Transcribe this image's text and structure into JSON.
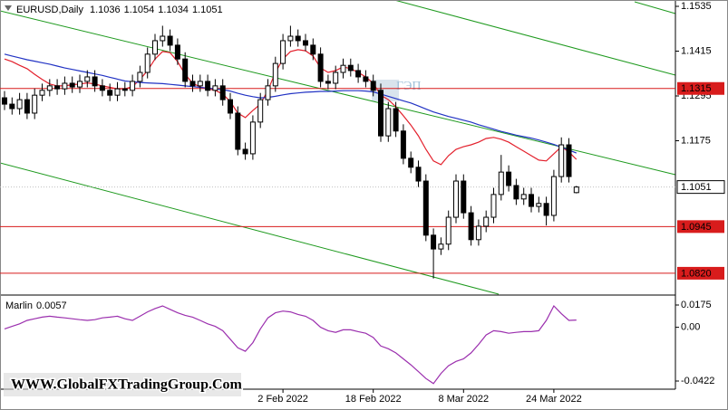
{
  "chart_data": {
    "type": "candlestick",
    "symbol": "EURUSD,Daily",
    "categories": [
      null,
      null,
      null,
      null,
      null,
      null,
      null,
      null,
      null,
      null,
      null,
      null,
      null,
      null,
      null,
      null,
      null,
      null,
      null,
      null,
      null,
      null,
      null,
      null,
      null,
      null,
      null,
      null,
      null,
      null,
      null,
      null,
      null,
      null,
      null,
      null,
      null,
      "2 Feb 2022",
      null,
      null,
      null,
      null,
      null,
      null,
      null,
      null,
      null,
      null,
      null,
      "18 Feb 2022",
      null,
      null,
      null,
      null,
      null,
      null,
      null,
      null,
      null,
      null,
      null,
      "8 Mar 2022",
      null,
      null,
      null,
      null,
      null,
      null,
      null,
      null,
      null,
      null,
      null,
      "24 Mar 2022",
      null,
      null,
      null
    ],
    "open": [
      1.129,
      1.1273,
      1.1261,
      1.1285,
      1.1249,
      1.1297,
      1.131,
      1.1322,
      1.1314,
      1.1329,
      1.1319,
      1.1334,
      1.1346,
      1.1322,
      1.131,
      1.1297,
      1.1314,
      1.131,
      1.1334,
      1.1358,
      1.1407,
      1.1443,
      1.1455,
      1.1431,
      1.1394,
      1.1334,
      1.1322,
      1.1334,
      1.131,
      1.1322,
      1.1285,
      1.1249,
      1.1152,
      1.114,
      1.1225,
      1.1285,
      1.1322,
      1.1382,
      1.1443,
      1.1455,
      1.1443,
      1.1431,
      1.1407,
      1.1334,
      1.1329,
      1.1358,
      1.1377,
      1.1363,
      1.1346,
      1.1334,
      1.131,
      1.1188,
      1.1261,
      1.1201,
      1.1128,
      1.1104,
      1.1067,
      1.0922,
      1.0885,
      1.0898,
      1.097,
      1.1067,
      1.0982,
      1.091,
      1.0946,
      1.097,
      1.1031,
      1.1091,
      1.1055,
      1.1019,
      1.1031,
      1.0999,
      1.1007,
      1.0975,
      1.1079,
      1.1164,
      1.1036
    ],
    "high": [
      1.1308,
      1.1291,
      1.1303,
      1.1303,
      1.1315,
      1.1328,
      1.134,
      1.134,
      1.1347,
      1.1347,
      1.1352,
      1.1364,
      1.1364,
      1.134,
      1.1328,
      1.1332,
      1.1332,
      1.1352,
      1.1376,
      1.1425,
      1.1461,
      1.1483,
      1.1473,
      1.1449,
      1.1412,
      1.1352,
      1.1352,
      1.1352,
      1.134,
      1.134,
      1.1303,
      1.1267,
      1.117,
      1.1243,
      1.1303,
      1.134,
      1.14,
      1.1461,
      1.1483,
      1.1473,
      1.1461,
      1.1449,
      1.1425,
      1.1352,
      1.1376,
      1.1395,
      1.1395,
      1.1381,
      1.1364,
      1.1352,
      1.1328,
      1.1279,
      1.1279,
      1.1219,
      1.1146,
      1.1122,
      1.1085,
      1.094,
      1.0916,
      1.0988,
      1.1085,
      1.1085,
      1.1,
      1.0964,
      1.0988,
      1.1049,
      1.1137,
      1.1109,
      1.1073,
      1.1049,
      1.1049,
      1.1025,
      1.1025,
      1.1097,
      1.1184,
      1.1182,
      1.1054
    ],
    "low": [
      1.1257,
      1.1245,
      1.1245,
      1.1233,
      1.1233,
      1.1281,
      1.1294,
      1.1298,
      1.1298,
      1.1303,
      1.1303,
      1.1318,
      1.1306,
      1.1294,
      1.1281,
      1.1281,
      1.1294,
      1.1294,
      1.1318,
      1.1342,
      1.1391,
      1.1427,
      1.1415,
      1.1378,
      1.1318,
      1.1306,
      1.1306,
      1.1294,
      1.1294,
      1.1269,
      1.1233,
      1.1136,
      1.1124,
      1.1124,
      1.1209,
      1.1269,
      1.1306,
      1.1366,
      1.1427,
      1.1427,
      1.1415,
      1.1391,
      1.1318,
      1.1313,
      1.1313,
      1.1342,
      1.1347,
      1.133,
      1.1318,
      1.1294,
      1.1172,
      1.1172,
      1.1185,
      1.1112,
      1.1088,
      1.1051,
      1.0906,
      1.0806,
      1.0869,
      1.0882,
      1.0954,
      1.0966,
      1.0894,
      1.0894,
      1.093,
      1.0954,
      1.1015,
      1.1039,
      1.1003,
      1.1003,
      1.0983,
      1.0983,
      1.0948,
      1.0959,
      1.1063,
      1.1063,
      1.1034
    ],
    "close": [
      1.1273,
      1.1261,
      1.1285,
      1.1249,
      1.1297,
      1.131,
      1.1322,
      1.1314,
      1.1329,
      1.1319,
      1.1334,
      1.1346,
      1.1322,
      1.131,
      1.1297,
      1.1314,
      1.131,
      1.1334,
      1.1358,
      1.1407,
      1.1443,
      1.1455,
      1.1431,
      1.1394,
      1.1334,
      1.1322,
      1.1334,
      1.131,
      1.1322,
      1.1285,
      1.1249,
      1.1152,
      1.114,
      1.1225,
      1.1285,
      1.1322,
      1.1382,
      1.1443,
      1.1455,
      1.1443,
      1.1431,
      1.1407,
      1.1334,
      1.1329,
      1.1358,
      1.1377,
      1.1363,
      1.1346,
      1.1334,
      1.131,
      1.1188,
      1.1261,
      1.1201,
      1.1128,
      1.1104,
      1.1067,
      1.0922,
      1.0885,
      1.0898,
      1.097,
      1.1067,
      1.0982,
      1.091,
      1.0946,
      1.097,
      1.1031,
      1.1091,
      1.1055,
      1.1019,
      1.1031,
      1.0999,
      1.1007,
      1.0975,
      1.1079,
      1.1164,
      1.1079,
      1.1051
    ],
    "ylim": [
      1.0764,
      1.1552
    ],
    "yticks": [
      1.1535,
      1.1415,
      1.1295,
      1.1175
    ],
    "levels": [
      1.1315,
      1.0945,
      {
        "value": 1.082,
        "label": "1.0820"
      }
    ],
    "level_color": "#d81c1c",
    "bull_color": "#ffffff",
    "bear_color": "#000000",
    "moving_averages": [
      {
        "color": "#e3202c",
        "values": [
          1.1394,
          1.1387,
          1.1377,
          1.1368,
          1.1353,
          1.1339,
          1.1327,
          1.1322,
          1.1322,
          1.1325,
          1.1327,
          1.133,
          1.1327,
          1.1322,
          1.1318,
          1.1314,
          1.1314,
          1.132,
          1.1339,
          1.1363,
          1.1394,
          1.1414,
          1.1411,
          1.1387,
          1.1353,
          1.1329,
          1.1319,
          1.1314,
          1.131,
          1.13,
          1.128,
          1.1249,
          1.1237,
          1.1256,
          1.1273,
          1.131,
          1.1358,
          1.1394,
          1.1414,
          1.1419,
          1.1416,
          1.1402,
          1.137,
          1.1358,
          1.1363,
          1.1373,
          1.1368,
          1.1358,
          1.1346,
          1.1329,
          1.1297,
          1.1285,
          1.1266,
          1.1242,
          1.1217,
          1.1188,
          1.1152,
          1.1121,
          1.1111,
          1.1135,
          1.1152,
          1.1159,
          1.1164,
          1.1171,
          1.1181,
          1.1184,
          1.1179,
          1.1171,
          1.1159,
          1.1147,
          1.1135,
          1.1123,
          1.1121,
          1.114,
          1.1159,
          1.1145,
          1.1125
        ]
      },
      {
        "color": "#2233c4",
        "values": [
          1.1407,
          1.1402,
          1.1397,
          1.1392,
          1.1388,
          1.1384,
          1.138,
          1.1375,
          1.137,
          1.1366,
          1.1362,
          1.1358,
          1.1354,
          1.135,
          1.1345,
          1.134,
          1.1335,
          1.1333,
          1.1331,
          1.133,
          1.1329,
          1.1328,
          1.1326,
          1.1324,
          1.1322,
          1.132,
          1.1318,
          1.1316,
          1.1314,
          1.1312,
          1.1308,
          1.1302,
          1.1297,
          1.1293,
          1.129,
          1.1291,
          1.1294,
          1.1298,
          1.1301,
          1.1303,
          1.1305,
          1.1306,
          1.1307,
          1.1307,
          1.1308,
          1.1309,
          1.1309,
          1.1309,
          1.1308,
          1.1306,
          1.13,
          1.1294,
          1.1288,
          1.1282,
          1.1276,
          1.1268,
          1.126,
          1.1252,
          1.1246,
          1.124,
          1.1235,
          1.123,
          1.1225,
          1.1218,
          1.1212,
          1.1206,
          1.12,
          1.1195,
          1.119,
          1.1186,
          1.1182,
          1.1177,
          1.1171,
          1.1165,
          1.1158,
          1.115,
          1.1142
        ]
      }
    ],
    "annotation": "ГЭП",
    "indicator": {
      "name": "Marlin",
      "color": "#9b2fae",
      "values": [
        -0.0013,
        0.0007,
        0.0027,
        0.0054,
        0.0067,
        0.008,
        0.0087,
        0.008,
        0.0074,
        0.0067,
        0.006,
        0.0054,
        0.006,
        0.0074,
        0.008,
        0.0087,
        0.0067,
        0.0054,
        0.0087,
        0.0121,
        0.0147,
        0.0168,
        0.0141,
        0.0114,
        0.0094,
        0.008,
        0.0054,
        0.0027,
        0.0007,
        -0.0027,
        -0.0094,
        -0.0161,
        -0.0188,
        -0.0121,
        -0.0013,
        0.0074,
        0.0114,
        0.0127,
        0.0121,
        0.0101,
        0.0087,
        0.0054,
        0.0,
        -0.0027,
        -0.004,
        -0.002,
        -0.002,
        -0.0034,
        -0.0047,
        -0.008,
        -0.0147,
        -0.0168,
        -0.0201,
        -0.0248,
        -0.0295,
        -0.0348,
        -0.0402,
        -0.0442,
        -0.0362,
        -0.0302,
        -0.0268,
        -0.0248,
        -0.0201,
        -0.0134,
        -0.006,
        -0.0027,
        -0.0034,
        -0.0047,
        -0.004,
        -0.0034,
        -0.0034,
        -0.0027,
        0.0054,
        0.0168,
        0.0107,
        0.0054,
        0.0057
      ],
      "ylim": [
        -0.0486,
        0.0246
      ],
      "yticks": [
        0.0175,
        {
          "value": 0,
          "label": "0.00"
        },
        -0.0422
      ]
    },
    "watermark": "WWW.GlobalFXTradingGroup.Com"
  }
}
